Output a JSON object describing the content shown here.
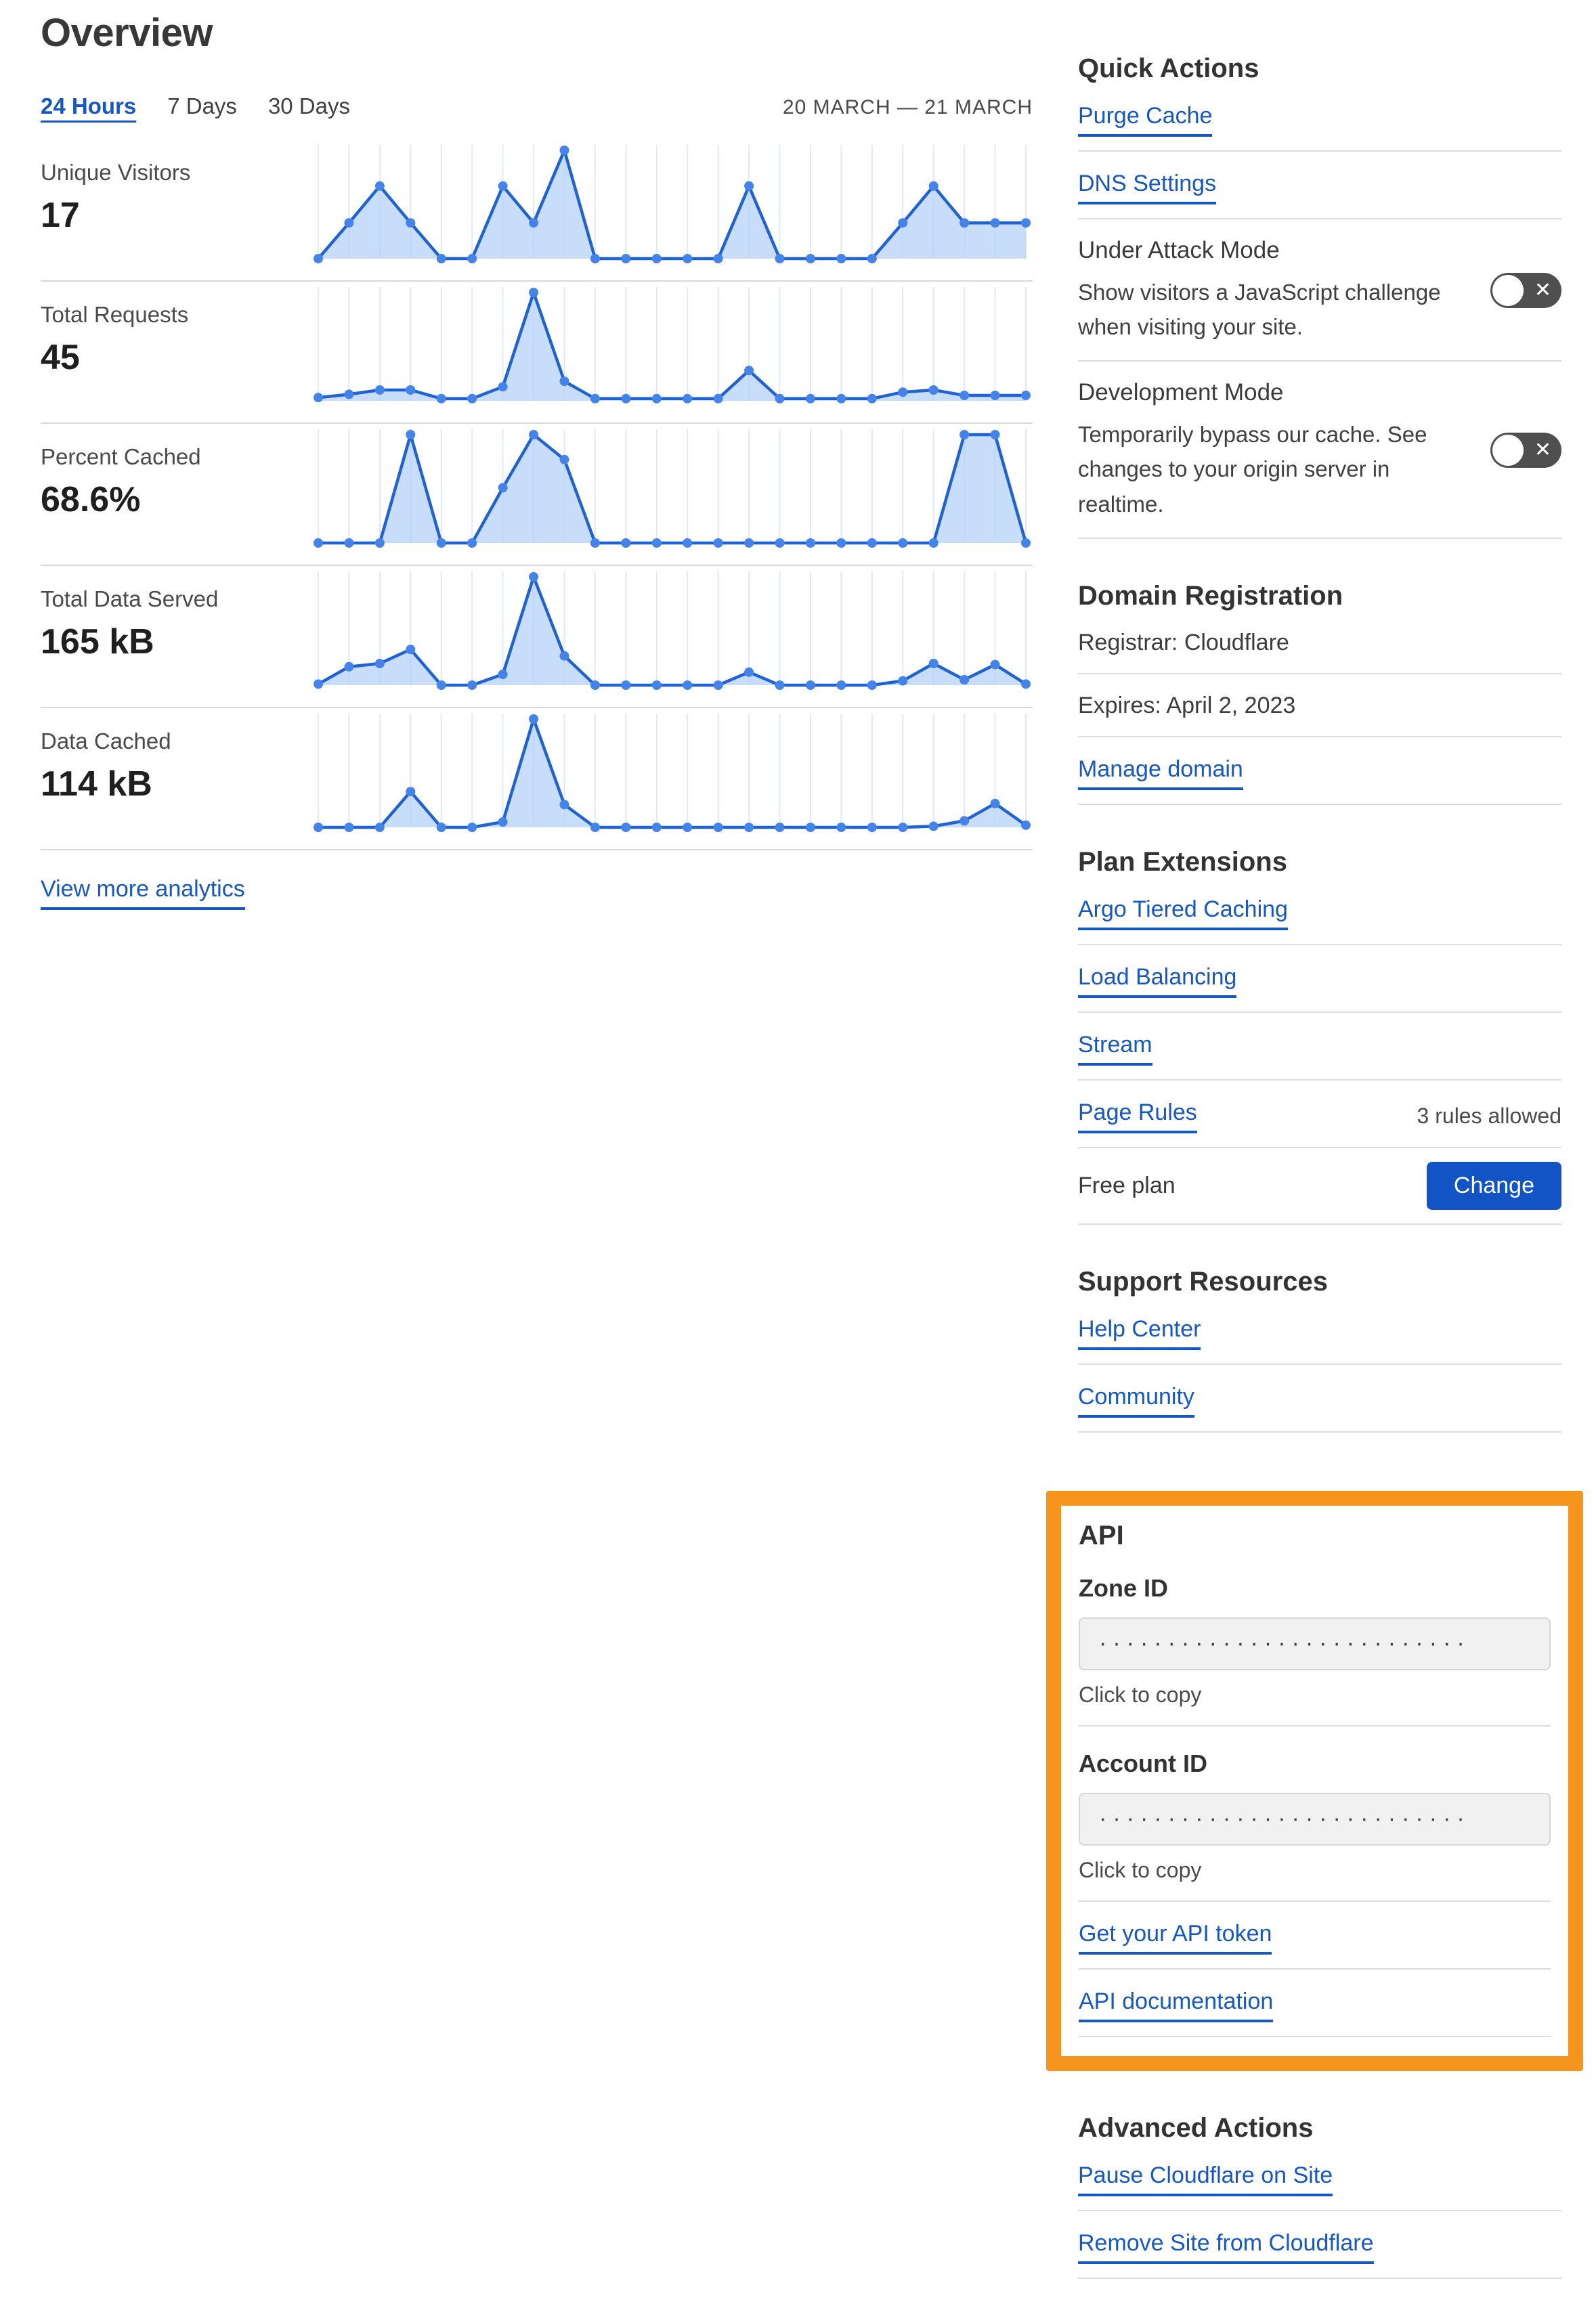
{
  "page_title": "Overview",
  "tabs": {
    "t24h": "24 Hours",
    "t7d": "7 Days",
    "t30d": "30 Days"
  },
  "date_range": "20 MARCH — 21 MARCH",
  "view_more_label": "View more analytics",
  "icons": {
    "toggle_x": "✕"
  },
  "colors": {
    "link_blue": "#1657c6",
    "button_blue": "#1253c5",
    "highlight_orange": "#f7941e",
    "chart_line": "#1f62d4",
    "chart_dot": "#4484ea",
    "chart_fill": "#b9d4f8",
    "chart_grid": "#dfe9f9"
  },
  "chart_data": [
    {
      "type": "area",
      "label": "Unique Visitors",
      "value": "17",
      "x_axis": "hours, 20 March – 21 March (24 points)",
      "grid": true,
      "legend": "none",
      "note": "values are percent of series max",
      "values": [
        0,
        33,
        67,
        33,
        0,
        0,
        67,
        33,
        100,
        0,
        0,
        0,
        0,
        0,
        67,
        0,
        0,
        0,
        0,
        33,
        67,
        33,
        33,
        33
      ]
    },
    {
      "type": "area",
      "label": "Total Requests",
      "value": "45",
      "x_axis": "hours, 20 March – 21 March (24 points)",
      "grid": true,
      "legend": "none",
      "note": "values are percent of series max",
      "values": [
        3,
        6,
        10,
        10,
        2,
        2,
        13,
        100,
        18,
        2,
        2,
        2,
        2,
        2,
        28,
        2,
        2,
        2,
        2,
        8,
        10,
        5,
        5,
        5
      ]
    },
    {
      "type": "area",
      "label": "Percent Cached",
      "value": "68.6%",
      "x_axis": "hours, 20 March – 21 March (24 points)",
      "grid": true,
      "legend": "none",
      "note": "values are percent of series max",
      "values": [
        0,
        0,
        0,
        100,
        0,
        0,
        51,
        100,
        77,
        0,
        0,
        0,
        0,
        0,
        0,
        0,
        0,
        0,
        0,
        0,
        0,
        100,
        100,
        0
      ]
    },
    {
      "type": "area",
      "label": "Total Data Served",
      "value": "165 kB",
      "x_axis": "hours, 20 March – 21 March (24 points)",
      "grid": true,
      "legend": "none",
      "note": "values are percent of series max",
      "values": [
        1,
        17,
        20,
        33,
        0,
        0,
        10,
        100,
        27,
        0,
        0,
        0,
        0,
        0,
        12,
        0,
        0,
        0,
        0,
        4,
        20,
        5,
        19,
        1
      ]
    },
    {
      "type": "area",
      "label": "Data Cached",
      "value": "114 kB",
      "x_axis": "hours, 20 March – 21 March (24 points)",
      "grid": true,
      "legend": "none",
      "note": "values are percent of series max",
      "values": [
        0,
        0,
        0,
        33,
        0,
        0,
        5,
        100,
        21,
        0,
        0,
        0,
        0,
        0,
        0,
        0,
        0,
        0,
        0,
        0,
        1,
        6,
        22,
        2
      ]
    }
  ],
  "sidebar": {
    "quick_actions": {
      "title": "Quick Actions",
      "purge_cache": "Purge Cache",
      "dns_settings": "DNS Settings",
      "under_attack": {
        "label": "Under Attack Mode",
        "desc": "Show visitors a JavaScript challenge when visiting your site.",
        "state": "off"
      },
      "dev_mode": {
        "label": "Development Mode",
        "desc": "Temporarily bypass our cache. See changes to your origin server in realtime.",
        "state": "off"
      }
    },
    "domain_registration": {
      "title": "Domain Registration",
      "registrar": "Registrar: Cloudflare",
      "expires": "Expires: April 2, 2023",
      "manage": "Manage domain"
    },
    "plan_extensions": {
      "title": "Plan Extensions",
      "links": [
        "Argo Tiered Caching",
        "Load Balancing",
        "Stream",
        "Page Rules"
      ],
      "page_rules_note": "3 rules allowed",
      "plan_name": "Free plan",
      "change_label": "Change"
    },
    "support": {
      "title": "Support Resources",
      "help_center": "Help Center",
      "community": "Community"
    },
    "api": {
      "title": "API",
      "zone_id_label": "Zone ID",
      "account_id_label": "Account ID",
      "masked_value": "···························",
      "click_to_copy": "Click to copy",
      "token_link": "Get your API token",
      "docs_link": "API documentation"
    },
    "advanced": {
      "title": "Advanced Actions",
      "pause": "Pause Cloudflare on Site",
      "remove": "Remove Site from Cloudflare"
    }
  }
}
